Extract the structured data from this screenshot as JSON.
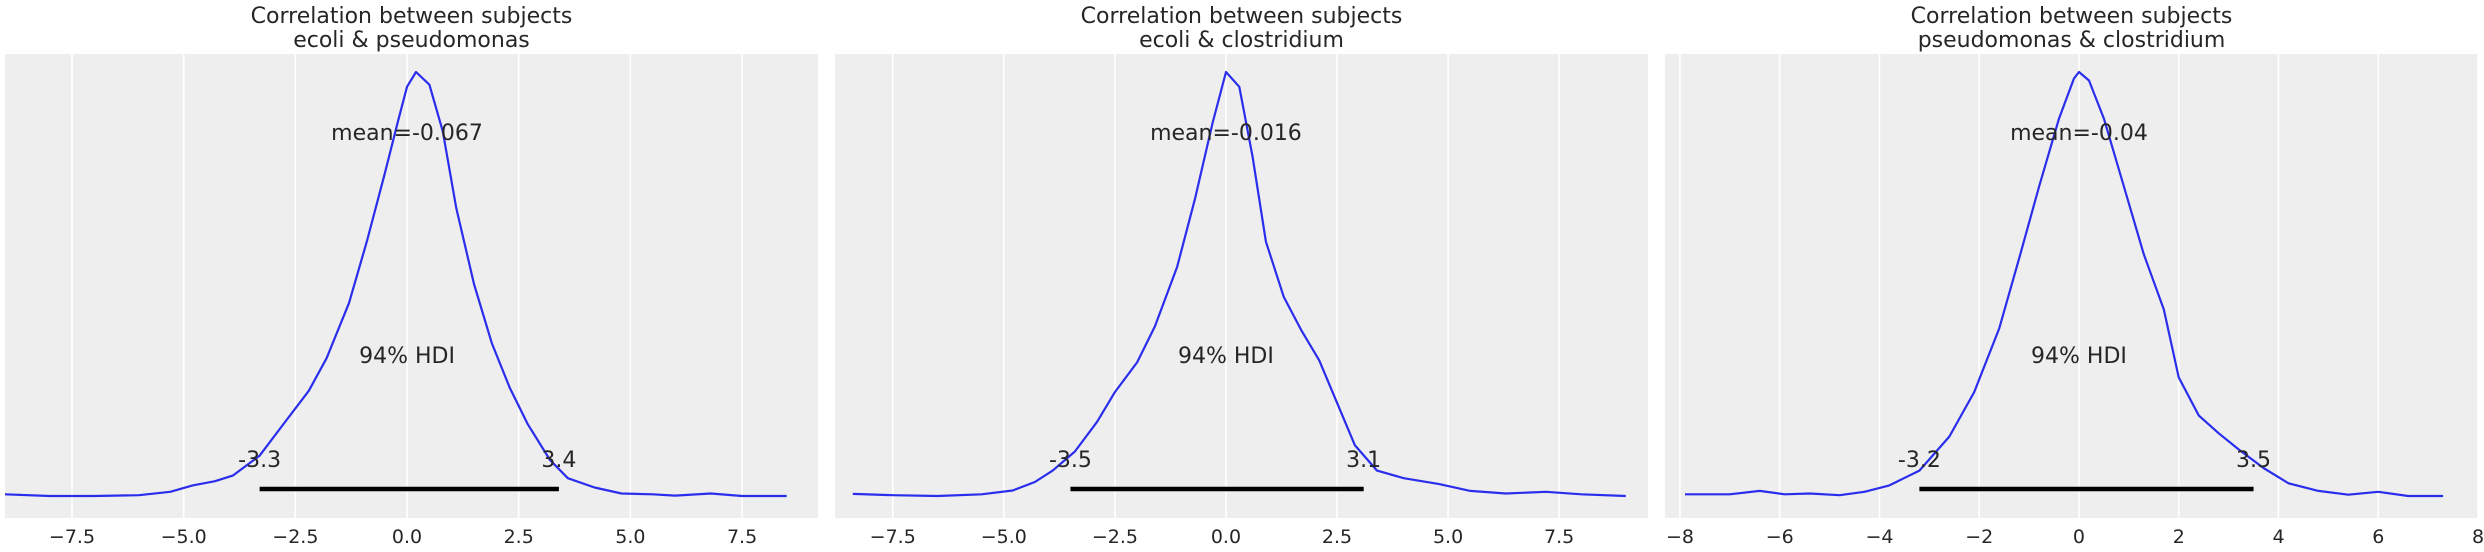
{
  "chart_data": [
    {
      "type": "area",
      "title_line1": "Correlation between subjects",
      "title_line2": "ecoli & pseudomonas",
      "mean_label": "mean=-0.067",
      "hdi_label": "94% HDI",
      "hdi_low": -3.3,
      "hdi_high": 3.4,
      "hdi_low_label": "-3.3",
      "hdi_high_label": "3.4",
      "xlim": [
        -9.0,
        9.2
      ],
      "xticks": [
        -7.5,
        -5.0,
        -2.5,
        0.0,
        2.5,
        5.0,
        7.5
      ],
      "xtick_labels": [
        "−7.5",
        "−5.0",
        "−2.5",
        "0.0",
        "2.5",
        "5.0",
        "7.5"
      ],
      "density": {
        "x": [
          -9.0,
          -8.0,
          -7.0,
          -6.0,
          -5.3,
          -4.8,
          -4.3,
          -3.9,
          -3.3,
          -2.8,
          -2.2,
          -1.8,
          -1.3,
          -0.9,
          -0.5,
          -0.2,
          0.0,
          0.2,
          0.5,
          0.8,
          1.1,
          1.5,
          1.9,
          2.3,
          2.7,
          3.2,
          3.6,
          4.2,
          4.8,
          5.5,
          6.0,
          6.8,
          7.5,
          8.5
        ],
        "y": [
          0.004,
          0.0,
          0.0,
          0.002,
          0.01,
          0.025,
          0.035,
          0.048,
          0.095,
          0.165,
          0.248,
          0.325,
          0.455,
          0.6,
          0.76,
          0.885,
          0.965,
          1.0,
          0.97,
          0.86,
          0.68,
          0.5,
          0.36,
          0.255,
          0.17,
          0.085,
          0.042,
          0.02,
          0.006,
          0.004,
          0.001,
          0.006,
          0.0,
          0.0
        ]
      }
    },
    {
      "type": "area",
      "title_line1": "Correlation between subjects",
      "title_line2": "ecoli & clostridium",
      "mean_label": "mean=-0.016",
      "hdi_label": "94% HDI",
      "hdi_low": -3.5,
      "hdi_high": 3.1,
      "hdi_low_label": "-3.5",
      "hdi_high_label": "3.1",
      "xlim": [
        -8.8,
        9.5
      ],
      "xticks": [
        -7.5,
        -5.0,
        -2.5,
        0.0,
        2.5,
        5.0,
        7.5
      ],
      "xtick_labels": [
        "−7.5",
        "−5.0",
        "−2.5",
        "0.0",
        "2.5",
        "5.0",
        "7.5"
      ],
      "density": {
        "x": [
          -8.4,
          -7.5,
          -6.5,
          -5.5,
          -4.8,
          -4.3,
          -3.9,
          -3.4,
          -2.9,
          -2.5,
          -2.0,
          -1.6,
          -1.1,
          -0.7,
          -0.3,
          0.0,
          0.3,
          0.6,
          0.9,
          1.3,
          1.7,
          2.1,
          2.5,
          2.9,
          3.4,
          4.0,
          4.8,
          5.5,
          6.3,
          7.2,
          8.0,
          9.0
        ],
        "y": [
          0.005,
          0.002,
          0.0,
          0.004,
          0.013,
          0.033,
          0.06,
          0.105,
          0.175,
          0.245,
          0.315,
          0.4,
          0.54,
          0.7,
          0.88,
          1.0,
          0.965,
          0.8,
          0.6,
          0.47,
          0.39,
          0.32,
          0.22,
          0.12,
          0.06,
          0.042,
          0.028,
          0.012,
          0.006,
          0.01,
          0.004,
          0.0
        ]
      }
    },
    {
      "type": "area",
      "title_line1": "Correlation between subjects",
      "title_line2": "pseudomonas & clostridium",
      "mean_label": "mean=-0.04",
      "hdi_label": "94% HDI",
      "hdi_low": -3.2,
      "hdi_high": 3.5,
      "hdi_low_label": "-3.2",
      "hdi_high_label": "3.5",
      "xlim": [
        -8.3,
        8.0
      ],
      "xticks": [
        -8,
        -6,
        -4,
        -2,
        0,
        2,
        4,
        6,
        8
      ],
      "xtick_labels": [
        "−8",
        "−6",
        "−4",
        "−2",
        "0",
        "2",
        "4",
        "6",
        "8"
      ],
      "density": {
        "x": [
          -7.9,
          -7.0,
          -6.4,
          -5.9,
          -5.4,
          -4.8,
          -4.3,
          -3.8,
          -3.2,
          -2.6,
          -2.1,
          -1.6,
          -1.2,
          -0.8,
          -0.4,
          -0.1,
          0.0,
          0.2,
          0.5,
          0.9,
          1.3,
          1.7,
          2.0,
          2.4,
          2.8,
          3.2,
          3.7,
          4.2,
          4.8,
          5.4,
          6.0,
          6.6,
          7.3
        ],
        "y": [
          0.004,
          0.004,
          0.012,
          0.004,
          0.006,
          0.002,
          0.01,
          0.025,
          0.06,
          0.14,
          0.245,
          0.395,
          0.56,
          0.73,
          0.89,
          0.985,
          1.0,
          0.98,
          0.89,
          0.73,
          0.57,
          0.44,
          0.28,
          0.19,
          0.148,
          0.11,
          0.066,
          0.03,
          0.012,
          0.003,
          0.01,
          0.0,
          0.0
        ]
      }
    }
  ],
  "colors": {
    "line": "#2a2eec",
    "hdi_bar": "#000000",
    "panel_bg": "#eeeeee",
    "grid": "#ffffff",
    "text": "#262626"
  }
}
